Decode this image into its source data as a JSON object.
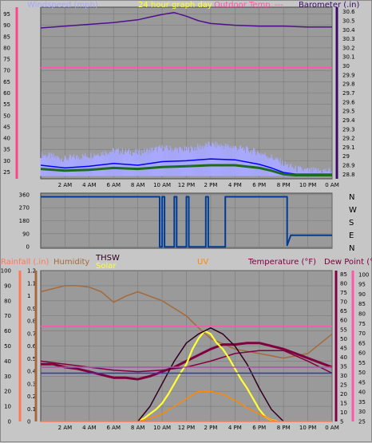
{
  "chart_data": [
    {
      "type": "line",
      "legend": [
        {
          "label": "Windspeed (mph)",
          "color": "#a8a8ff"
        },
        {
          "label": "24 hour graph day",
          "color": "#ffff33"
        },
        {
          "label": "Outdoor Temp.",
          "color": "#ff55aa"
        },
        {
          "label": "---",
          "color": "#ff55aa"
        },
        {
          "label": "Barometer (.in)",
          "color": "#3a0a6a"
        }
      ],
      "x_ticks": [
        "2 AM",
        "4 AM",
        "6 AM",
        "8 AM",
        "10 AM",
        "12 PM",
        "2 PM",
        "4 PM",
        "6 PM",
        "8 PM",
        "10 PM",
        "0 AM"
      ],
      "left_axis": {
        "label": "Windspeed (mph)",
        "ticks": [
          25,
          30,
          35,
          40,
          45,
          50,
          55,
          60,
          65,
          70,
          75,
          80,
          85,
          90,
          95
        ],
        "ylim": [
          22,
          98
        ],
        "color": "#ff4488"
      },
      "right_axis": {
        "label": "Barometer (.in)",
        "ticks": [
          "28.8",
          "28.9",
          "29",
          "29.1",
          "29.2",
          "29.3",
          "29.4",
          "29.5",
          "29.6",
          "29.7",
          "29.8",
          "29.9",
          "30",
          "30.1",
          "30.2",
          "30.3",
          "30.4",
          "30.5",
          "30.6"
        ],
        "ylim": [
          28.75,
          30.65
        ],
        "color": "#3a0a6a"
      },
      "series": [
        {
          "name": "Barometer (.in)",
          "color": "#50108a",
          "axis": "right",
          "x": [
            0,
            2,
            4,
            6,
            8,
            9,
            10,
            11,
            12,
            13,
            14,
            16,
            18,
            20,
            22,
            24
          ],
          "values": [
            30.42,
            30.44,
            30.46,
            30.48,
            30.51,
            30.54,
            30.57,
            30.59,
            30.55,
            30.5,
            30.47,
            30.45,
            30.44,
            30.44,
            30.43,
            30.43
          ]
        },
        {
          "name": "Outdoor Temp.",
          "color": "#ff55aa",
          "axis": "right",
          "x": [
            0,
            24
          ],
          "values": [
            29.98,
            29.98
          ]
        },
        {
          "name": "Windspeed (mph)",
          "color": "#a8a8ff",
          "axis": "right",
          "x": [
            0,
            2,
            4,
            6,
            8,
            10,
            12,
            14,
            16,
            18,
            19,
            20,
            21,
            22,
            24
          ],
          "values": [
            28.98,
            28.93,
            28.97,
            29.02,
            29.0,
            29.05,
            29.03,
            29.09,
            29.06,
            29.0,
            28.95,
            28.88,
            28.82,
            28.8,
            28.8
          ]
        },
        {
          "name": "",
          "color": "#0000ff",
          "axis": "right",
          "x": [
            0,
            2,
            4,
            6,
            8,
            10,
            12,
            14,
            16,
            18,
            19,
            20,
            21,
            22,
            24
          ],
          "values": [
            28.9,
            28.87,
            28.89,
            28.92,
            28.9,
            28.94,
            28.95,
            28.97,
            28.96,
            28.91,
            28.87,
            28.82,
            28.8,
            28.8,
            28.8
          ]
        },
        {
          "name": "",
          "color": "#1e6b1e",
          "axis": "right",
          "x": [
            0,
            2,
            4,
            6,
            8,
            10,
            12,
            14,
            16,
            18,
            19,
            20,
            21,
            22,
            24
          ],
          "values": [
            28.86,
            28.84,
            28.85,
            28.87,
            28.86,
            28.88,
            28.89,
            28.9,
            28.9,
            28.87,
            28.84,
            28.8,
            28.79,
            28.79,
            28.79
          ]
        }
      ]
    },
    {
      "type": "line",
      "left_axis": {
        "ticks": [
          0,
          90,
          180,
          270,
          360
        ],
        "ylim": [
          -10,
          370
        ]
      },
      "right_axis": {
        "ticks": [
          "N",
          "W",
          "S",
          "E",
          "N"
        ]
      },
      "x_ticks": [],
      "series": [
        {
          "name": "",
          "color": "#003c96",
          "x": [
            0,
            9.8,
            9.8,
            10.0,
            10.0,
            10.2,
            10.2,
            11.0,
            11.0,
            11.2,
            11.2,
            12.0,
            12.0,
            12.2,
            12.2,
            13.6,
            13.6,
            13.8,
            13.8,
            15.2,
            15.2,
            15.5,
            15.5,
            20.3,
            20.3,
            20.6,
            24
          ],
          "values": [
            345,
            345,
            0,
            0,
            345,
            345,
            0,
            0,
            345,
            345,
            0,
            0,
            345,
            345,
            0,
            0,
            345,
            345,
            0,
            0,
            345,
            345,
            345,
            345,
            10,
            80,
            80
          ]
        }
      ]
    },
    {
      "type": "line",
      "legend": [
        {
          "label": "Rainfall (.in)",
          "color": "#ff7755"
        },
        {
          "label": "Humidity",
          "color": "#a56a3a"
        },
        {
          "label": "THSW",
          "color": "#300020"
        },
        {
          "label": "Solar",
          "color": "#ffff33"
        },
        {
          "label": "UV",
          "color": "#ff8800"
        },
        {
          "label": "Temperature (°F)",
          "color": "#800040"
        },
        {
          "label": "Dew Point (°F)",
          "color": "#800040"
        }
      ],
      "x_ticks": [
        "2 AM",
        "4 AM",
        "6 AM",
        "8 AM",
        "10 AM",
        "12 PM",
        "2 PM",
        "4 PM",
        "6 PM",
        "8 PM",
        "10 PM",
        "0 AM"
      ],
      "axis_humidity": {
        "ticks": [
          0,
          10,
          20,
          30,
          40,
          50,
          60,
          70,
          80,
          90,
          100
        ],
        "ylim": [
          0,
          100
        ]
      },
      "axis_rain": {
        "ticks": [
          "0",
          "0.1",
          "0.2",
          "0.3",
          "0.4",
          "0.5",
          "0.6",
          "0.7",
          "0.8",
          "0.9",
          "1",
          "1.1",
          "1.2"
        ],
        "ylim": [
          0,
          1.2
        ]
      },
      "axis_temp": {
        "ticks": [
          5,
          10,
          15,
          20,
          25,
          30,
          35,
          40,
          45,
          50,
          55,
          60,
          65,
          70,
          75,
          80,
          85
        ],
        "ylim": [
          5,
          87
        ]
      },
      "axis_temp2": {
        "ticks": [
          25,
          30,
          35,
          40,
          45,
          50,
          55,
          60,
          65,
          70,
          75,
          80,
          85,
          90,
          95,
          100
        ],
        "ylim": [
          25,
          102
        ]
      },
      "series": [
        {
          "name": "Humidity",
          "color": "#a56a3a",
          "axis": "humidity",
          "x": [
            0,
            1,
            2,
            3,
            4,
            5,
            6,
            7,
            8,
            10,
            12,
            13,
            14,
            16,
            18,
            20,
            22,
            24
          ],
          "values": [
            86,
            88,
            90,
            90,
            89,
            86,
            79,
            83,
            86,
            80,
            70,
            62,
            55,
            48,
            45,
            42,
            45,
            58
          ]
        },
        {
          "name": "Dew Point (°F)",
          "color": "#800040",
          "axis": "humidity",
          "x": [
            0,
            2,
            4,
            6,
            8,
            10,
            12,
            14,
            16,
            18,
            20,
            22,
            24
          ],
          "values": [
            40,
            38,
            36,
            34,
            33,
            34,
            36,
            40,
            45,
            47,
            47,
            40,
            32
          ]
        },
        {
          "name": "Temperature (°F)",
          "color": "#800040",
          "axis": "humidity",
          "x": [
            0,
            1,
            2,
            3,
            4,
            5,
            6,
            7,
            8,
            9,
            10,
            11,
            12,
            13,
            14,
            15,
            16,
            17,
            18,
            19,
            20,
            21,
            22,
            23,
            24
          ],
          "values": [
            38,
            38,
            36,
            35,
            33,
            31,
            29,
            29,
            28,
            30,
            33,
            36,
            40,
            44,
            48,
            51,
            51,
            52,
            52,
            50,
            48,
            45,
            42,
            39,
            36
          ]
        },
        {
          "name": "Solar",
          "color": "#ffff33",
          "axis": "humidity",
          "x": [
            8,
            8.5,
            9,
            9.5,
            10,
            10.5,
            11,
            11.5,
            12,
            12.5,
            13,
            13.5,
            14,
            14.5,
            15,
            15.5,
            16,
            16.5,
            17,
            17.5,
            18,
            18.5,
            19,
            19.5
          ],
          "values": [
            0,
            2,
            5,
            8,
            12,
            18,
            25,
            32,
            38,
            48,
            55,
            60,
            58,
            52,
            48,
            42,
            35,
            28,
            22,
            15,
            8,
            3,
            1,
            0
          ]
        },
        {
          "name": "UV",
          "color": "#ff8800",
          "axis": "humidity",
          "x": [
            8,
            9,
            10,
            11,
            12,
            13,
            14,
            15,
            16,
            17,
            18,
            19,
            19.5
          ],
          "values": [
            0,
            2,
            5,
            10,
            15,
            20,
            20,
            18,
            14,
            9,
            5,
            1,
            0
          ]
        },
        {
          "name": "THSW",
          "color": "#300020",
          "axis": "humidity",
          "x": [
            8,
            9,
            10,
            11,
            12,
            13,
            14,
            15,
            16,
            17,
            18,
            19,
            20
          ],
          "values": [
            0,
            10,
            25,
            40,
            52,
            58,
            62,
            58,
            50,
            38,
            22,
            8,
            0
          ]
        },
        {
          "name": "Rainfall (.in)",
          "color": "#ff7755",
          "axis": "humidity",
          "x": [
            0,
            24
          ],
          "values": [
            0,
            0
          ]
        },
        {
          "name": "",
          "color": "#ff55aa",
          "axis": "humidity",
          "x": [
            0,
            24
          ],
          "values": [
            63,
            63
          ]
        },
        {
          "name": "",
          "color": "#3333cc",
          "axis": "humidity",
          "x": [
            0,
            24
          ],
          "values": [
            32,
            32
          ]
        },
        {
          "name": "",
          "color": "#aa55aa",
          "axis": "humidity",
          "x": [
            0,
            24
          ],
          "values": [
            36,
            36
          ]
        }
      ]
    }
  ]
}
